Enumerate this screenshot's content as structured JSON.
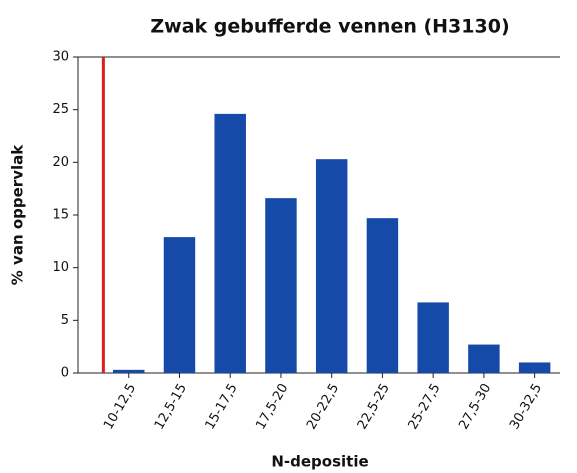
{
  "chart_data": {
    "type": "bar",
    "title": "Zwak gebufferde vennen (H3130)",
    "x_label": "N-depositie",
    "y_label": "% van oppervlak",
    "categories": [
      "10-12,5",
      "12,5-15",
      "15-17,5",
      "17,5-20",
      "20-22,5",
      "22,5-25",
      "25-27,5",
      "27,5-30",
      "30-32,5"
    ],
    "bins": [
      10,
      12.5,
      15,
      17.5,
      20,
      22.5,
      25,
      27.5,
      30,
      32.5
    ],
    "values": [
      0.3,
      12.9,
      24.6,
      16.6,
      20.3,
      14.7,
      6.7,
      2.7,
      1.0
    ],
    "color": "#154aa8",
    "xlim": [
      8.75,
      32.5
    ],
    "reference_x": 10,
    "reference_color": "#e01b1b",
    "ylim": [
      0,
      30
    ],
    "yticks": [
      0,
      5,
      10,
      15,
      20,
      25,
      30
    ],
    "grid": false
  }
}
